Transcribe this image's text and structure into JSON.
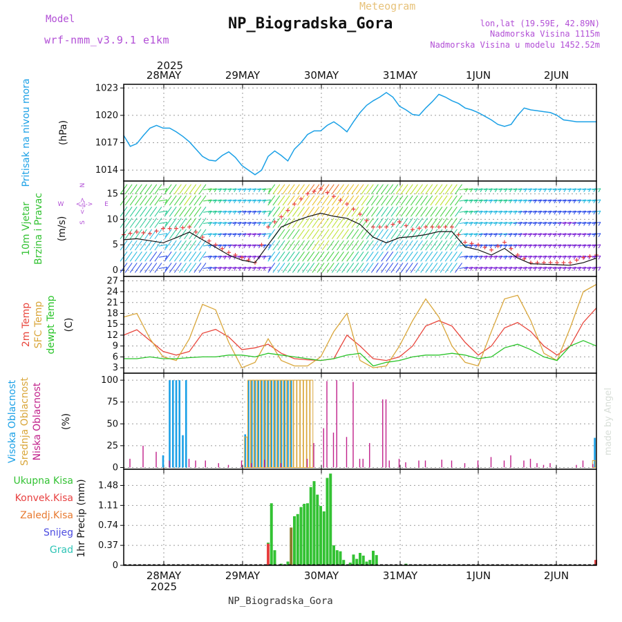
{
  "header": {
    "model_label": "Model",
    "model_name": "wrf-nmm_v3.9.1 e1km",
    "title": "NP_Biogradska_Gora",
    "subtitle": "Meteogram",
    "coords": "lon,lat (19.59E, 42.89N)",
    "elevation": "Nadmorska Visina 1115m",
    "model_elevation": "Nadmorska Visina u modelu 1452.52m"
  },
  "footer": {
    "station": "NP_Biogradska_Gora"
  },
  "watermark": "made by Angel",
  "colors": {
    "pressure": "#1aa0e6",
    "temp2m": "#e8463c",
    "sfc_temp": "#d9a63a",
    "dewpt": "#29c429",
    "high_cloud": "#1aa0e6",
    "mid_cloud": "#d9a63a",
    "low_cloud": "#c0208a",
    "total_precip": "#33c233",
    "conv_precip": "#e84040",
    "frozen_precip": "#e87a30",
    "snow": "#4a4ae0",
    "graupel": "#2ec4b6",
    "wind_axis": "#b24fd6"
  },
  "chart_data": [
    {
      "type": "line",
      "panel": "pressure",
      "ylabel_left": "Pritisak na nivou mora",
      "ylabel_unit": "(hPa)",
      "year_label": "2025",
      "x_tick_labels": [
        "28MAY",
        "29MAY",
        "30MAY",
        "31MAY",
        "1JUN",
        "2JUN"
      ],
      "y_ticks": [
        1014,
        1017,
        1020,
        1023
      ],
      "ylim": [
        1012.8,
        1023.4
      ],
      "xlim_hours": [
        0,
        144
      ],
      "grid": true,
      "series": [
        {
          "x_hours": [
            0,
            2,
            4,
            6,
            8,
            10,
            12,
            14,
            16,
            18,
            20,
            22,
            24,
            26,
            28,
            30,
            32,
            34,
            36,
            38,
            40,
            42,
            44,
            46,
            48,
            50,
            52,
            54,
            56,
            58,
            60,
            62,
            64,
            66,
            68,
            70,
            72,
            74,
            76,
            78,
            80,
            82,
            84,
            86,
            88,
            90,
            92,
            94,
            96,
            98,
            100,
            102,
            104,
            106,
            108,
            110,
            112,
            114,
            116,
            118,
            120,
            122,
            124,
            126,
            128,
            130,
            132,
            134,
            136,
            138,
            140,
            142,
            144
          ],
          "values": [
            1017.8,
            1016.6,
            1016.9,
            1017.8,
            1018.6,
            1018.9,
            1018.6,
            1018.6,
            1018.2,
            1017.7,
            1017.1,
            1016.3,
            1015.5,
            1015.1,
            1015.0,
            1015.6,
            1016.0,
            1015.4,
            1014.5,
            1014.0,
            1013.5,
            1014.0,
            1015.5,
            1016.1,
            1015.6,
            1015.0,
            1016.3,
            1017.0,
            1017.9,
            1018.3,
            1018.3,
            1018.9,
            1019.3,
            1018.8,
            1018.2,
            1019.3,
            1020.3,
            1021.1,
            1021.6,
            1022.0,
            1022.5,
            1022.0,
            1021.0,
            1020.6,
            1020.1,
            1020.0,
            1020.8,
            1021.5,
            1022.3,
            1022.0,
            1021.6,
            1021.3,
            1020.8,
            1020.6,
            1020.3,
            1019.9,
            1019.5,
            1019.0,
            1018.8,
            1019.0,
            1020.0,
            1020.8,
            1020.6,
            1020.5,
            1020.4,
            1020.3,
            1020.0,
            1019.5,
            1019.4,
            1019.3,
            1019.3,
            1019.3,
            1019.3
          ]
        }
      ]
    },
    {
      "type": "line",
      "panel": "wind",
      "ylabel_left": [
        "10m Vjetar",
        "Brzina i Pravac"
      ],
      "ylabel_unit": "(m/s)",
      "compass": [
        "N",
        "W",
        "E",
        "S"
      ],
      "compass_arrow": "<-|->",
      "y_ticks": [
        0,
        5,
        10,
        15
      ],
      "ylim": [
        -1.2,
        17.5
      ],
      "xlim_hours": [
        0,
        144
      ],
      "grid": true,
      "series": [
        {
          "name": "speed",
          "x_hours": [
            0,
            4,
            8,
            12,
            16,
            20,
            24,
            28,
            32,
            36,
            40,
            44,
            48,
            52,
            56,
            60,
            64,
            68,
            72,
            76,
            80,
            84,
            88,
            92,
            96,
            100,
            104,
            108,
            112,
            116,
            120,
            124,
            128,
            132,
            136,
            140,
            144
          ],
          "values": [
            6.0,
            6.2,
            5.8,
            5.4,
            6.4,
            7.5,
            6.0,
            4.5,
            3.0,
            2.0,
            1.5,
            5.0,
            8.5,
            9.6,
            10.5,
            11.2,
            10.6,
            10.2,
            9.0,
            6.5,
            5.4,
            6.4,
            6.6,
            7.0,
            7.6,
            7.6,
            4.6,
            4.0,
            3.0,
            4.3,
            2.4,
            1.3,
            1.2,
            1.1,
            1.0,
            1.5,
            2.4
          ]
        },
        {
          "name": "gust",
          "x_hours": [
            0,
            4,
            8,
            12,
            16,
            20,
            24,
            28,
            32,
            36,
            40,
            44,
            48,
            52,
            56,
            60,
            64,
            68,
            72,
            76,
            80,
            84,
            88,
            92,
            96,
            100,
            104,
            108,
            112,
            116,
            120,
            124,
            128,
            132,
            136,
            140,
            144
          ],
          "values": [
            7.0,
            7.5,
            7.2,
            8.2,
            8.2,
            8.5,
            6.5,
            5.0,
            3.5,
            2.5,
            1.5,
            8.5,
            10.5,
            13.0,
            15.0,
            16.0,
            14.5,
            13.0,
            11.0,
            8.5,
            8.5,
            9.5,
            8.0,
            8.5,
            8.5,
            8.5,
            5.5,
            5.0,
            4.0,
            5.5,
            3.0,
            1.5,
            1.5,
            1.5,
            1.5,
            2.5,
            3.0
          ]
        }
      ]
    },
    {
      "type": "line",
      "panel": "temperature",
      "ylabel_left": [
        "2m Temp",
        "SFC Temp",
        "dewpt Temp"
      ],
      "ylabel_unit": "(C)",
      "y_ticks": [
        3,
        6,
        9,
        12,
        15,
        18,
        21,
        24,
        27
      ],
      "ylim": [
        1.5,
        28.2
      ],
      "xlim_hours": [
        0,
        144
      ],
      "grid": true,
      "series": [
        {
          "name": "2m Temp",
          "x_hours": [
            0,
            4,
            8,
            12,
            16,
            20,
            24,
            28,
            32,
            36,
            40,
            44,
            48,
            52,
            56,
            60,
            64,
            68,
            72,
            76,
            80,
            84,
            88,
            92,
            96,
            100,
            104,
            108,
            112,
            116,
            120,
            124,
            128,
            132,
            136,
            140,
            144
          ],
          "values": [
            12.0,
            13.5,
            10.5,
            7.5,
            6.5,
            7.5,
            12.5,
            13.6,
            11.5,
            8.0,
            8.5,
            9.5,
            7.0,
            5.5,
            5.2,
            5.0,
            5.5,
            12.0,
            9.0,
            5.5,
            5.0,
            6.0,
            9.0,
            14.5,
            16.0,
            14.5,
            10.0,
            6.5,
            9.0,
            14.0,
            15.5,
            13.0,
            9.0,
            6.5,
            9.0,
            15.5,
            19.5
          ]
        },
        {
          "name": "SFC Temp",
          "x_hours": [
            0,
            4,
            8,
            12,
            16,
            20,
            24,
            28,
            32,
            36,
            40,
            44,
            48,
            52,
            56,
            60,
            64,
            68,
            72,
            76,
            80,
            84,
            88,
            92,
            96,
            100,
            104,
            108,
            112,
            116,
            120,
            124,
            128,
            132,
            136,
            140,
            144
          ],
          "values": [
            17.0,
            18.0,
            11.0,
            6.0,
            5.0,
            11.0,
            20.5,
            19.0,
            10.0,
            3.0,
            4.5,
            11.0,
            5.0,
            3.5,
            3.5,
            6.0,
            13.0,
            18.0,
            5.0,
            3.0,
            3.5,
            9.0,
            16.0,
            22.0,
            17.0,
            9.0,
            4.5,
            3.5,
            13.0,
            22.0,
            23.0,
            16.0,
            7.0,
            5.0,
            14.0,
            24.0,
            26.0
          ]
        },
        {
          "name": "dewpt Temp",
          "x_hours": [
            0,
            4,
            8,
            12,
            16,
            20,
            24,
            28,
            32,
            36,
            40,
            44,
            48,
            52,
            56,
            60,
            64,
            68,
            72,
            76,
            80,
            84,
            88,
            92,
            96,
            100,
            104,
            108,
            112,
            116,
            120,
            124,
            128,
            132,
            136,
            140,
            144
          ],
          "values": [
            5.5,
            5.5,
            6.0,
            5.5,
            5.5,
            5.8,
            6.0,
            6.0,
            6.5,
            6.5,
            6.0,
            7.0,
            6.5,
            6.0,
            5.5,
            5.0,
            5.5,
            6.5,
            7.0,
            3.5,
            4.5,
            5.0,
            6.0,
            6.5,
            6.5,
            7.0,
            6.5,
            5.5,
            6.0,
            8.5,
            9.5,
            8.0,
            6.0,
            5.0,
            9.0,
            10.5,
            9.0
          ]
        }
      ]
    },
    {
      "type": "bar",
      "panel": "clouds",
      "ylabel_left": [
        "Visoka Oblacnost",
        "Srednja Oblacnost",
        "Niska Oblacnost"
      ],
      "ylabel_unit": "(%)",
      "y_ticks": [
        0,
        25,
        50,
        75,
        100
      ],
      "ylim": [
        -2,
        108
      ],
      "xlim_hours": [
        0,
        144
      ],
      "grid": true,
      "series": [
        {
          "name": "Visoka Oblacnost",
          "x_hours": [
            12,
            14,
            15,
            16,
            17,
            18,
            19,
            37,
            38,
            39,
            40,
            41,
            42,
            43,
            44,
            45,
            46,
            47,
            48,
            49,
            50,
            51,
            143.5
          ],
          "values": [
            14,
            100,
            100,
            100,
            100,
            37,
            100,
            38,
            100,
            100,
            100,
            100,
            100,
            100,
            100,
            100,
            100,
            100,
            100,
            100,
            100,
            100,
            34
          ]
        },
        {
          "name": "Srednja Oblacnost",
          "x_hours": [
            37,
            38,
            39,
            40,
            41,
            42,
            43,
            44,
            45,
            46,
            47,
            48,
            49,
            50,
            51,
            52,
            53,
            54,
            55,
            56,
            57,
            143
          ],
          "values": [
            35,
            100,
            100,
            100,
            100,
            100,
            100,
            100,
            100,
            100,
            100,
            100,
            100,
            100,
            100,
            100,
            100,
            100,
            100,
            100,
            100,
            8
          ]
        },
        {
          "name": "Niska Oblacnost",
          "x_hours": [
            2,
            6,
            10,
            14,
            20,
            22,
            25,
            29,
            32,
            36,
            39,
            43,
            48,
            56,
            58,
            61,
            62,
            64,
            65,
            68,
            70,
            72,
            73,
            75,
            79,
            80,
            81,
            84,
            86,
            90,
            92,
            97,
            100,
            104,
            108,
            112,
            116,
            118,
            122,
            124,
            126,
            128,
            130,
            138,
            140,
            143
          ],
          "values": [
            10,
            25,
            18,
            8,
            10,
            8,
            8,
            5,
            3,
            8,
            5,
            9,
            5,
            10,
            28,
            45,
            99,
            40,
            100,
            35,
            98,
            10,
            10,
            28,
            78,
            78,
            8,
            10,
            6,
            8,
            8,
            9,
            8,
            5,
            8,
            12,
            8,
            14,
            8,
            10,
            5,
            3,
            5,
            3,
            8,
            4
          ]
        }
      ]
    },
    {
      "type": "bar",
      "panel": "precipitation",
      "legend": [
        "Ukupna Kisa",
        "Konvek.Kisa",
        "Zaledj.Kisa",
        "Snijeg",
        "Grad"
      ],
      "ylabel_unit": "1hr Precip (mm)",
      "y_ticks": [
        0,
        0.37,
        0.74,
        1.11,
        1.48
      ],
      "ylim": [
        0,
        1.78
      ],
      "xlim_hours": [
        0,
        144
      ],
      "grid": true,
      "series": [
        {
          "name": "Ukupna Kisa",
          "x_hours": [
            44,
            45,
            46,
            48,
            50,
            51,
            52,
            53,
            54,
            55,
            56,
            57,
            58,
            59,
            60,
            61,
            62,
            63,
            64,
            65,
            66,
            67,
            69,
            70,
            71,
            72,
            73,
            74,
            75,
            76,
            77,
            86
          ],
          "values": [
            0.42,
            1.15,
            0.28,
            0.03,
            0.07,
            0.05,
            0.91,
            0.95,
            1.08,
            1.14,
            1.15,
            1.45,
            1.56,
            1.31,
            1.1,
            1.0,
            1.62,
            1.7,
            0.37,
            0.28,
            0.26,
            0.1,
            0.05,
            0.2,
            0.12,
            0.23,
            0.18,
            0.07,
            0.1,
            0.27,
            0.19,
            0.03
          ]
        },
        {
          "name": "Konvek.Kisa",
          "x_hours": [
            44,
            143.8
          ],
          "values": [
            0.4,
            0.1
          ]
        },
        {
          "name": "Zaledj.Kisa",
          "x_hours": [
            51
          ],
          "values": [
            0.7
          ]
        },
        {
          "name": "Snijeg",
          "x_hours": [],
          "values": []
        },
        {
          "name": "Grad",
          "x_hours": [],
          "values": []
        }
      ]
    }
  ]
}
